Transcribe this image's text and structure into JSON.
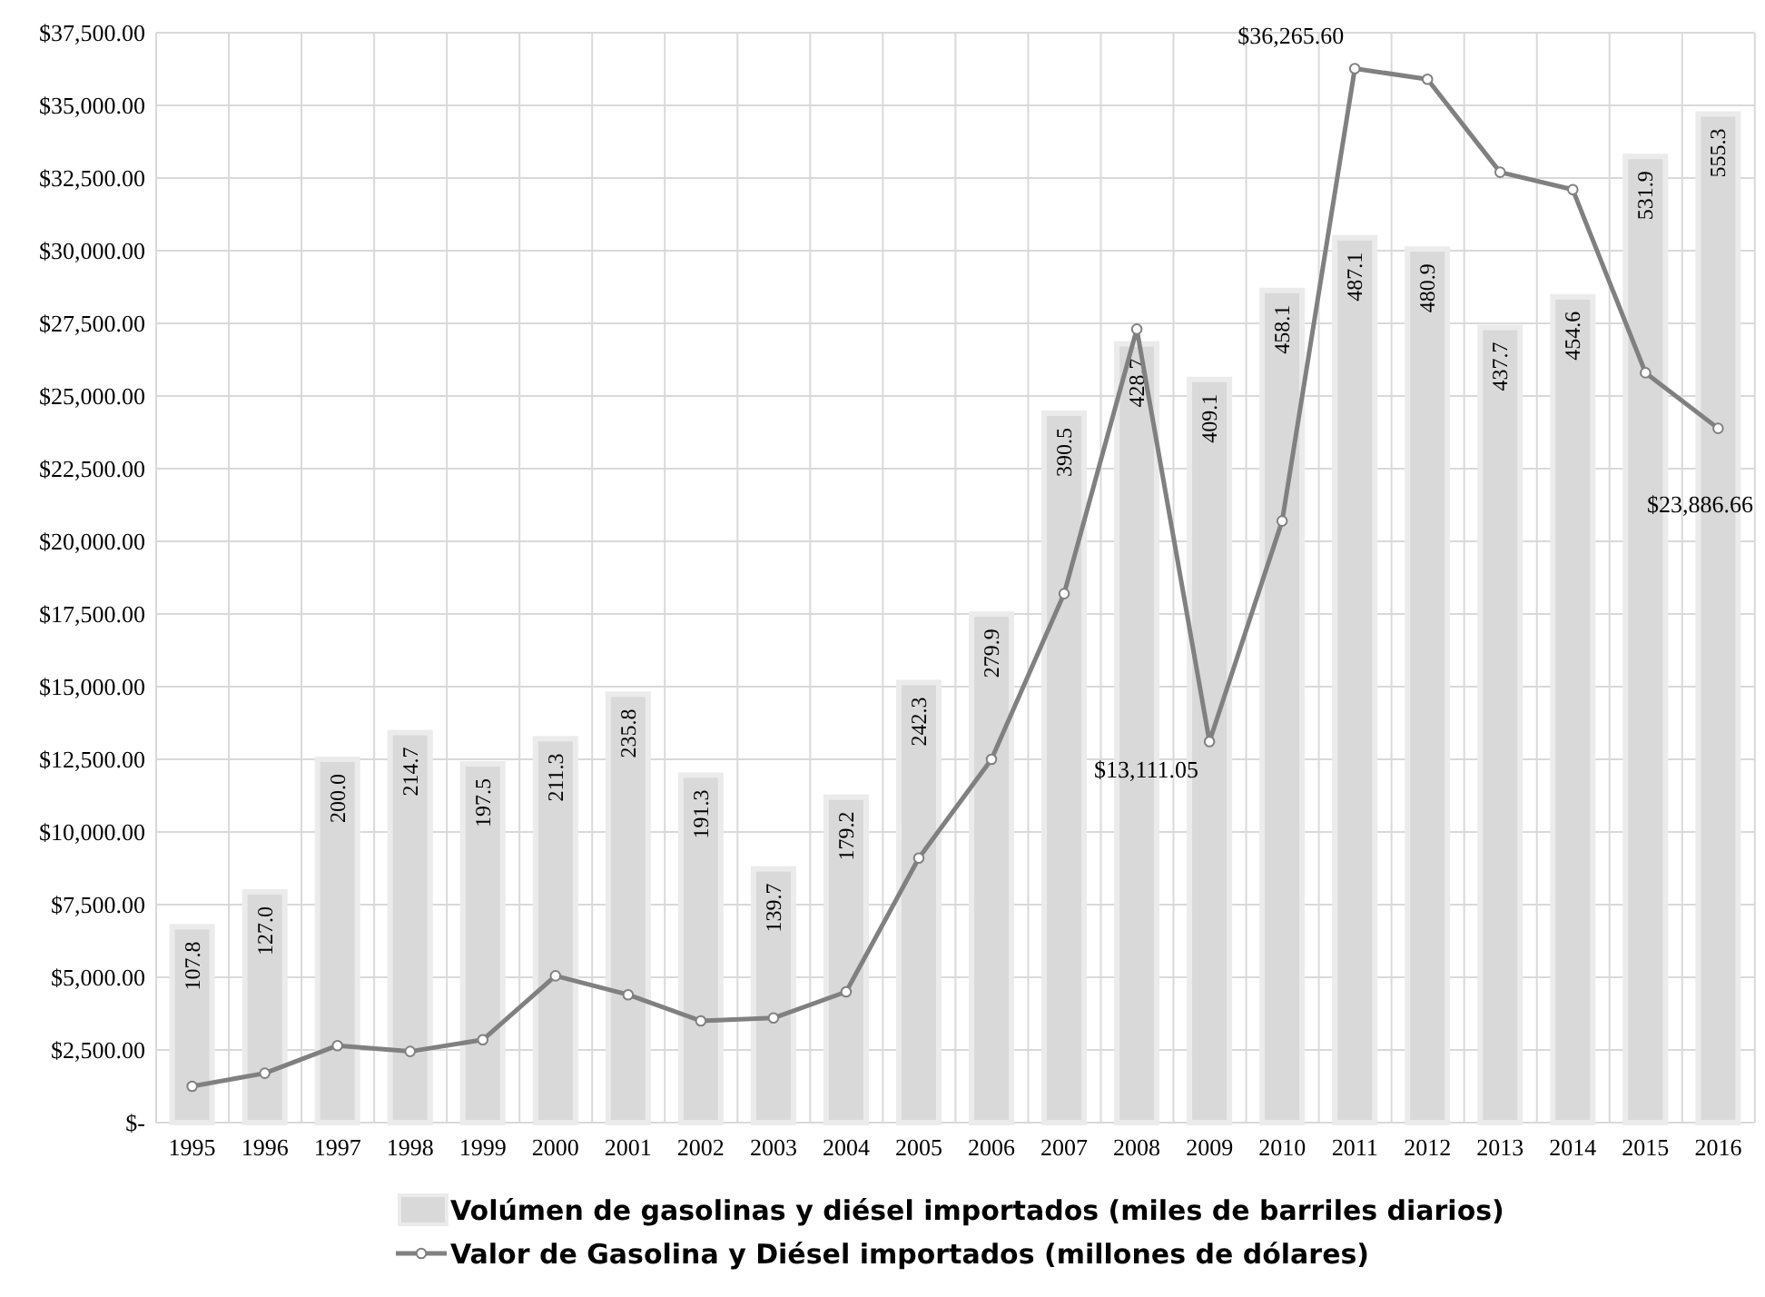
{
  "chart_data": {
    "type": "bar",
    "categories": [
      "1995",
      "1996",
      "1997",
      "1998",
      "1999",
      "2000",
      "2001",
      "2002",
      "2003",
      "2004",
      "2005",
      "2006",
      "2007",
      "2008",
      "2009",
      "2010",
      "2011",
      "2012",
      "2013",
      "2014",
      "2015",
      "2016"
    ],
    "series": [
      {
        "axis": "y2",
        "name": "Volúmen de gasolinas y diésel importados (miles de barriles diarios)",
        "color": "#d9d9d9",
        "values": [
          107.8,
          127.0,
          200.0,
          214.7,
          197.5,
          211.3,
          235.8,
          191.3,
          139.7,
          179.2,
          242.3,
          279.9,
          390.5,
          428.7,
          409.1,
          458.1,
          487.1,
          480.9,
          437.7,
          454.6,
          531.9,
          555.3
        ],
        "value_labels": [
          "107.8",
          "127.0",
          "200.0",
          "214.7",
          "197.5",
          "211.3",
          "235.8",
          "191.3",
          "139.7",
          "179.2",
          "242.3",
          "279.9",
          "390.5",
          "428.7",
          "409.1",
          "458.1",
          "487.1",
          "480.9",
          "437.7",
          "454.6",
          "531.9",
          "555.3"
        ]
      },
      {
        "type": "line",
        "name": "Valor de Gasolina y Diésel importados (millones de dólares)",
        "color": "#808080",
        "marker": "circle",
        "values": [
          1250,
          1700,
          2650,
          2450,
          2850,
          5050,
          4400,
          3500,
          3600,
          4500,
          9100,
          12500,
          18200,
          27300,
          13111.05,
          20700,
          36265.6,
          35900,
          32700,
          32100,
          25800,
          23886.66
        ],
        "value_labels": [
          null,
          null,
          null,
          null,
          null,
          null,
          null,
          null,
          null,
          null,
          null,
          null,
          null,
          null,
          "$13,111.05",
          null,
          "$36,265.60",
          null,
          null,
          null,
          null,
          "$23,886.66"
        ]
      }
    ],
    "ylim": [
      0,
      37500
    ],
    "yticks": [
      {
        "value": 0,
        "label": "$-"
      },
      {
        "value": 2500,
        "label": "$2,500.00"
      },
      {
        "value": 5000,
        "label": "$5,000.00"
      },
      {
        "value": 7500,
        "label": "$7,500.00"
      },
      {
        "value": 10000,
        "label": "$10,000.00"
      },
      {
        "value": 12500,
        "label": "$12,500.00"
      },
      {
        "value": 15000,
        "label": "$15,000.00"
      },
      {
        "value": 17500,
        "label": "$17,500.00"
      },
      {
        "value": 20000,
        "label": "$20,000.00"
      },
      {
        "value": 22500,
        "label": "$22,500.00"
      },
      {
        "value": 25000,
        "label": "$25,000.00"
      },
      {
        "value": 27500,
        "label": "$27,500.00"
      },
      {
        "value": 30000,
        "label": "$30,000.00"
      },
      {
        "value": 32500,
        "label": "$32,500.00"
      },
      {
        "value": 35000,
        "label": "$35,000.00"
      },
      {
        "value": 37500,
        "label": "$37,500.00"
      }
    ],
    "y2lim": [
      0,
      600
    ],
    "grid": true,
    "legend": "bottom"
  }
}
